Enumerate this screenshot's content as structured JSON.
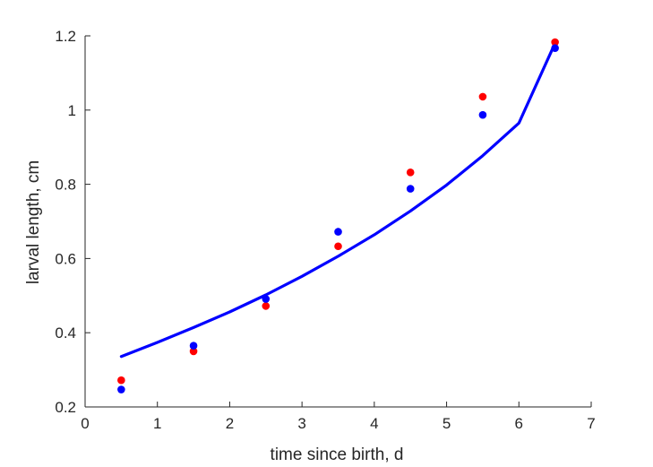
{
  "chart_data": {
    "type": "scatter",
    "xlabel": "time since birth, d",
    "ylabel": "larval length, cm",
    "xlim": [
      0,
      7
    ],
    "ylim": [
      0.2,
      1.2
    ],
    "xticks": [
      0,
      1,
      2,
      3,
      4,
      5,
      6,
      7
    ],
    "yticks": [
      0.2,
      0.4,
      0.6,
      0.8,
      1.0,
      1.2
    ],
    "xtick_labels": [
      "0",
      "1",
      "2",
      "3",
      "4",
      "5",
      "6",
      "7"
    ],
    "ytick_labels": [
      "0.2",
      "0.4",
      "0.6",
      "0.8",
      "1",
      "1.2"
    ],
    "grid": false,
    "box": "left-bottom",
    "series": [
      {
        "kind": "scatter",
        "color": "#ff0000",
        "x": [
          0.5,
          1.5,
          2.5,
          3.5,
          4.5,
          5.5,
          6.5
        ],
        "y": [
          0.272,
          0.35,
          0.472,
          0.633,
          0.832,
          1.036,
          1.183
        ]
      },
      {
        "kind": "scatter",
        "color": "#0000ff",
        "x": [
          0.5,
          1.5,
          2.5,
          3.5,
          4.5,
          5.5,
          6.5
        ],
        "y": [
          0.247,
          0.365,
          0.491,
          0.672,
          0.788,
          0.987,
          1.167
        ]
      },
      {
        "kind": "line",
        "color": "#0000ff",
        "x": [
          0.5,
          1.0,
          1.5,
          2.0,
          2.5,
          3.0,
          3.5,
          4.0,
          4.5,
          5.0,
          5.5,
          6.0,
          6.5
        ],
        "y": [
          0.336,
          0.374,
          0.414,
          0.456,
          0.502,
          0.552,
          0.606,
          0.664,
          0.728,
          0.798,
          0.877,
          0.965,
          1.18
        ]
      }
    ]
  }
}
